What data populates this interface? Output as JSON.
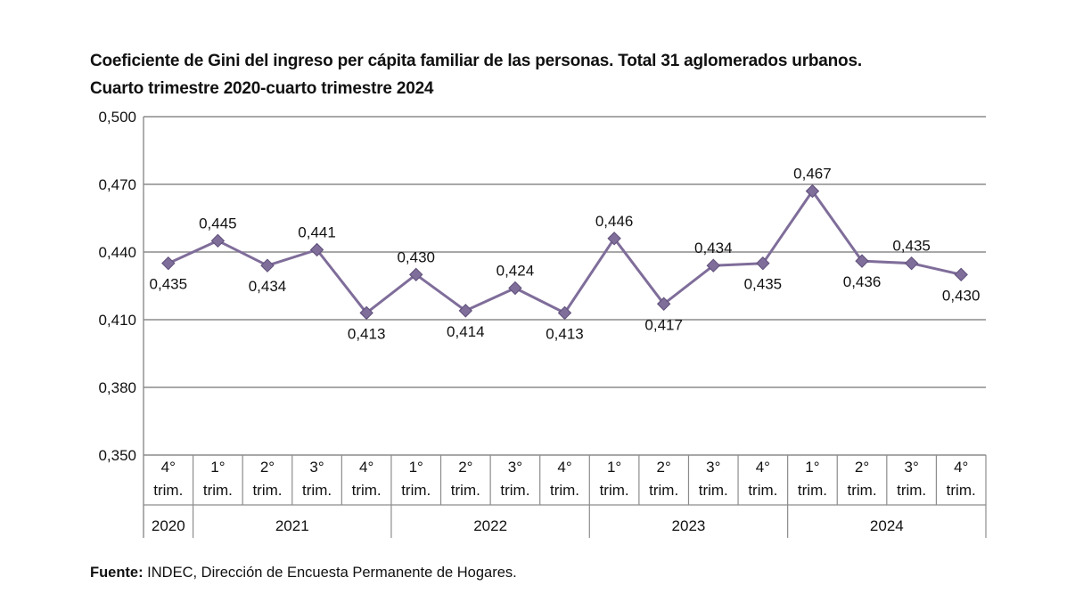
{
  "chart_data": {
    "type": "line",
    "title": "Coeficiente de Gini del ingreso per cápita familiar de las personas. Total 31 aglomerados urbanos.",
    "subtitle": "Cuarto trimestre 2020-cuarto trimestre 2024",
    "xlabel": "",
    "ylabel": "",
    "ylim": [
      0.35,
      0.5
    ],
    "yticks": [
      "0,350",
      "0,380",
      "0,410",
      "0,440",
      "0,470",
      "0,500"
    ],
    "grid": true,
    "legend": "none",
    "categories": [
      {
        "q": "4°",
        "sub": "trim."
      },
      {
        "q": "1°",
        "sub": "trim."
      },
      {
        "q": "2°",
        "sub": "trim."
      },
      {
        "q": "3°",
        "sub": "trim."
      },
      {
        "q": "4°",
        "sub": "trim."
      },
      {
        "q": "1°",
        "sub": "trim."
      },
      {
        "q": "2°",
        "sub": "trim."
      },
      {
        "q": "3°",
        "sub": "trim."
      },
      {
        "q": "4°",
        "sub": "trim."
      },
      {
        "q": "1°",
        "sub": "trim."
      },
      {
        "q": "2°",
        "sub": "trim."
      },
      {
        "q": "3°",
        "sub": "trim."
      },
      {
        "q": "4°",
        "sub": "trim."
      },
      {
        "q": "1°",
        "sub": "trim."
      },
      {
        "q": "2°",
        "sub": "trim."
      },
      {
        "q": "3°",
        "sub": "trim."
      },
      {
        "q": "4°",
        "sub": "trim."
      }
    ],
    "years": [
      {
        "label": "2020",
        "count": 1
      },
      {
        "label": "2021",
        "count": 4
      },
      {
        "label": "2022",
        "count": 4
      },
      {
        "label": "2023",
        "count": 4
      },
      {
        "label": "2024",
        "count": 4
      }
    ],
    "series": [
      {
        "name": "Coeficiente de Gini",
        "color": "#7f6d9a",
        "values": [
          0.435,
          0.445,
          0.434,
          0.441,
          0.413,
          0.43,
          0.414,
          0.424,
          0.413,
          0.446,
          0.417,
          0.434,
          0.435,
          0.467,
          0.436,
          0.435,
          0.43
        ],
        "labels": [
          "0,435",
          "0,445",
          "0,434",
          "0,441",
          "0,413",
          "0,430",
          "0,414",
          "0,424",
          "0,413",
          "0,446",
          "0,417",
          "0,434",
          "0,435",
          "0,467",
          "0,436",
          "0,435",
          "0,430"
        ],
        "label_positions": [
          "below",
          "above",
          "below",
          "above",
          "below",
          "above",
          "below",
          "above",
          "below",
          "above",
          "below",
          "above",
          "below",
          "above",
          "below",
          "above",
          "below"
        ]
      }
    ]
  },
  "source": {
    "label": "Fuente:",
    "text": " INDEC, Dirección de Encuesta Permanente de Hogares."
  }
}
